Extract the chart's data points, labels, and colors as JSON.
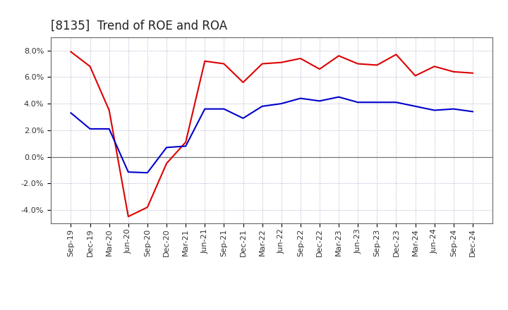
{
  "title": "[8135]  Trend of ROE and ROA",
  "labels": [
    "Sep-19",
    "Dec-19",
    "Mar-20",
    "Jun-20",
    "Sep-20",
    "Dec-20",
    "Mar-21",
    "Jun-21",
    "Sep-21",
    "Dec-21",
    "Mar-22",
    "Jun-22",
    "Sep-22",
    "Dec-22",
    "Mar-23",
    "Jun-23",
    "Sep-23",
    "Dec-23",
    "Mar-24",
    "Jun-24",
    "Sep-24",
    "Dec-24"
  ],
  "ROE": [
    7.9,
    6.8,
    3.5,
    -4.5,
    -3.8,
    -0.5,
    1.1,
    7.2,
    7.0,
    5.6,
    7.0,
    7.1,
    7.4,
    6.6,
    7.6,
    7.0,
    6.9,
    7.7,
    6.1,
    6.8,
    6.4,
    6.3
  ],
  "ROA": [
    3.3,
    2.1,
    2.1,
    -1.15,
    -1.2,
    0.7,
    0.8,
    3.6,
    3.6,
    2.9,
    3.8,
    4.0,
    4.4,
    4.2,
    4.5,
    4.1,
    4.1,
    4.1,
    3.8,
    3.5,
    3.6,
    3.4
  ],
  "roe_color": "#dd0000",
  "roa_color": "#0000cc",
  "background_color": "#ffffff",
  "grid_color": "#aaaacc",
  "ylim": [
    -5.0,
    9.0
  ],
  "yticks": [
    -4.0,
    -2.0,
    0.0,
    2.0,
    4.0,
    6.0,
    8.0
  ],
  "title_fontsize": 12,
  "legend_fontsize": 10,
  "tick_fontsize": 8
}
